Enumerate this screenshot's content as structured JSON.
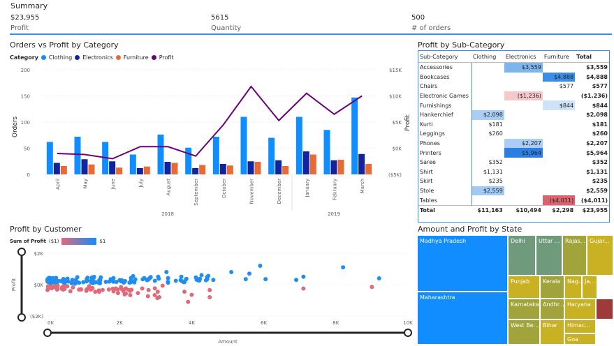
{
  "summary": {
    "title": "Summary",
    "kpis": [
      {
        "value": "$23,955",
        "label": "Profit"
      },
      {
        "value": "5615",
        "label": "Quantity"
      },
      {
        "value": "500",
        "label": "# of orders"
      }
    ]
  },
  "orders_chart": {
    "title": "Orders vs Profit by Category",
    "legend_title": "Category",
    "legend": [
      {
        "name": "Clothing",
        "color": "#118dff"
      },
      {
        "name": "Electronics",
        "color": "#12239e"
      },
      {
        "name": "Furniture",
        "color": "#e66c37"
      },
      {
        "name": "Profit",
        "color": "#6b007b"
      }
    ],
    "y_label": "Orders",
    "y2_label": "Profit",
    "y_ticks": [
      "200",
      "150",
      "100",
      "50",
      "0"
    ],
    "y2_ticks": [
      "$15K",
      "$10K",
      "$5K",
      "$0K",
      "($5K)"
    ],
    "years": [
      "2018",
      "2019"
    ]
  },
  "chart_data": [
    {
      "type": "bar",
      "title": "Orders vs Profit by Category",
      "categories": [
        "April",
        "May",
        "June",
        "July",
        "August",
        "September",
        "October",
        "November",
        "December",
        "January",
        "February",
        "March"
      ],
      "ylabel": "Orders",
      "ylim": [
        0,
        200
      ],
      "y2label": "Profit",
      "y2lim": [
        -5000,
        15000
      ],
      "series": [
        {
          "name": "Clothing",
          "values": [
            62,
            72,
            62,
            38,
            76,
            51,
            72,
            110,
            70,
            110,
            85,
            147
          ]
        },
        {
          "name": "Electronics",
          "values": [
            22,
            29,
            25,
            12,
            24,
            12,
            20,
            25,
            27,
            44,
            27,
            39
          ]
        },
        {
          "name": "Furniture",
          "values": [
            16,
            19,
            13,
            15,
            22,
            18,
            17,
            24,
            16,
            38,
            28,
            20
          ]
        },
        {
          "name": "Profit",
          "type": "line",
          "values": [
            -1000,
            -1200,
            -2000,
            300,
            300,
            -1500,
            4500,
            11800,
            5300,
            10500,
            6500,
            10000
          ]
        }
      ]
    },
    {
      "type": "scatter",
      "title": "Profit by Customer",
      "xlabel": "Amount",
      "ylabel": "Profit",
      "xlim": [
        0,
        10000
      ],
      "ylim": [
        -2000,
        2000
      ],
      "x_ticks": [
        "0K",
        "2K",
        "4K",
        "6K",
        "8K",
        "10K"
      ],
      "y_ticks": [
        "$2K",
        "$0K",
        "($2K)"
      ],
      "legend_title": "Sum of Profit",
      "legend_range": [
        "($1)",
        "$1"
      ]
    }
  ],
  "subcategory_table": {
    "title": "Profit by Sub-Category",
    "headers": [
      "Sub-Category",
      "Clothing",
      "Electronics",
      "Furniture",
      "Total"
    ],
    "rows": [
      {
        "name": "Accessories",
        "c": "",
        "e": "$3,559",
        "f": "",
        "t": "$3,559",
        "ec": "#7fb5ee"
      },
      {
        "name": "Bookcases",
        "c": "",
        "e": "",
        "f": "$4,888",
        "t": "$4,888",
        "fc": "#3a8ee8"
      },
      {
        "name": "Chairs",
        "c": "",
        "e": "",
        "f": "$577",
        "t": "$577"
      },
      {
        "name": "Electronic Games",
        "c": "",
        "e": "($1,236)",
        "f": "",
        "t": "($1,236)",
        "ec": "#f4c8cc"
      },
      {
        "name": "Furnishings",
        "c": "",
        "e": "",
        "f": "$844",
        "t": "$844",
        "fc": "#cfe3f8"
      },
      {
        "name": "Hankerchief",
        "c": "$2,098",
        "e": "",
        "f": "",
        "t": "$2,098",
        "cc": "#a9cdf4"
      },
      {
        "name": "Kurti",
        "c": "$181",
        "e": "",
        "f": "",
        "t": "$181"
      },
      {
        "name": "Leggings",
        "c": "$260",
        "e": "",
        "f": "",
        "t": "$260"
      },
      {
        "name": "Phones",
        "c": "",
        "e": "$2,207",
        "f": "",
        "t": "$2,207",
        "ec": "#a9cdf4"
      },
      {
        "name": "Printers",
        "c": "",
        "e": "$5,964",
        "f": "",
        "t": "$5,964",
        "ec": "#2b7fe0"
      },
      {
        "name": "Saree",
        "c": "$352",
        "e": "",
        "f": "",
        "t": "$352"
      },
      {
        "name": "Shirt",
        "c": "$1,131",
        "e": "",
        "f": "",
        "t": "$1,131"
      },
      {
        "name": "Skirt",
        "c": "$235",
        "e": "",
        "f": "",
        "t": "$235"
      },
      {
        "name": "Stole",
        "c": "$2,559",
        "e": "",
        "f": "",
        "t": "$2,559",
        "cc": "#a2c9f3"
      },
      {
        "name": "Tables",
        "c": "",
        "e": "",
        "f": "($4,011)",
        "t": "($4,011)",
        "fc": "#d9646e"
      }
    ],
    "total": {
      "name": "Total",
      "c": "$11,163",
      "e": "$10,494",
      "f": "$2,298",
      "t": "$23,955"
    }
  },
  "treemap": {
    "title": "Amount and Profit by State",
    "tiles": [
      {
        "label": "Madhya Pradesh",
        "color": "#118dff"
      },
      {
        "label": "Maharashtra",
        "color": "#118dff"
      },
      {
        "label": "Delhi",
        "color": "#6f9a7b"
      },
      {
        "label": "Uttar ...",
        "color": "#6f9a7b"
      },
      {
        "label": "Rajas...",
        "color": "#a1a43a"
      },
      {
        "label": "Gujar...",
        "color": "#c8b122"
      },
      {
        "label": "Punjab",
        "color": "#c8b122"
      },
      {
        "label": "Kerala",
        "color": "#a1a43a"
      },
      {
        "label": "Nag...",
        "color": "#c8b122"
      },
      {
        "label": "Ja...",
        "color": "#c8b122"
      },
      {
        "label": "Karnataka",
        "color": "#a1a43a"
      },
      {
        "label": "Andhr...",
        "color": "#a1a43a"
      },
      {
        "label": "Haryana",
        "color": "#c8b122"
      },
      {
        "label": "",
        "color": "#9e3a3a"
      },
      {
        "label": "West Be...",
        "color": "#a1a43a"
      },
      {
        "label": "Bihar",
        "color": "#c8b122"
      },
      {
        "label": "Himac...",
        "color": "#c8b122"
      },
      {
        "label": "Goa",
        "color": "#c8b122"
      }
    ]
  },
  "customer_chart": {
    "title": "Profit by Customer",
    "legend_title": "Sum of Profit",
    "legend_min": "($1)",
    "legend_max": "$1",
    "x_label": "Amount",
    "y_label": "Profit"
  }
}
